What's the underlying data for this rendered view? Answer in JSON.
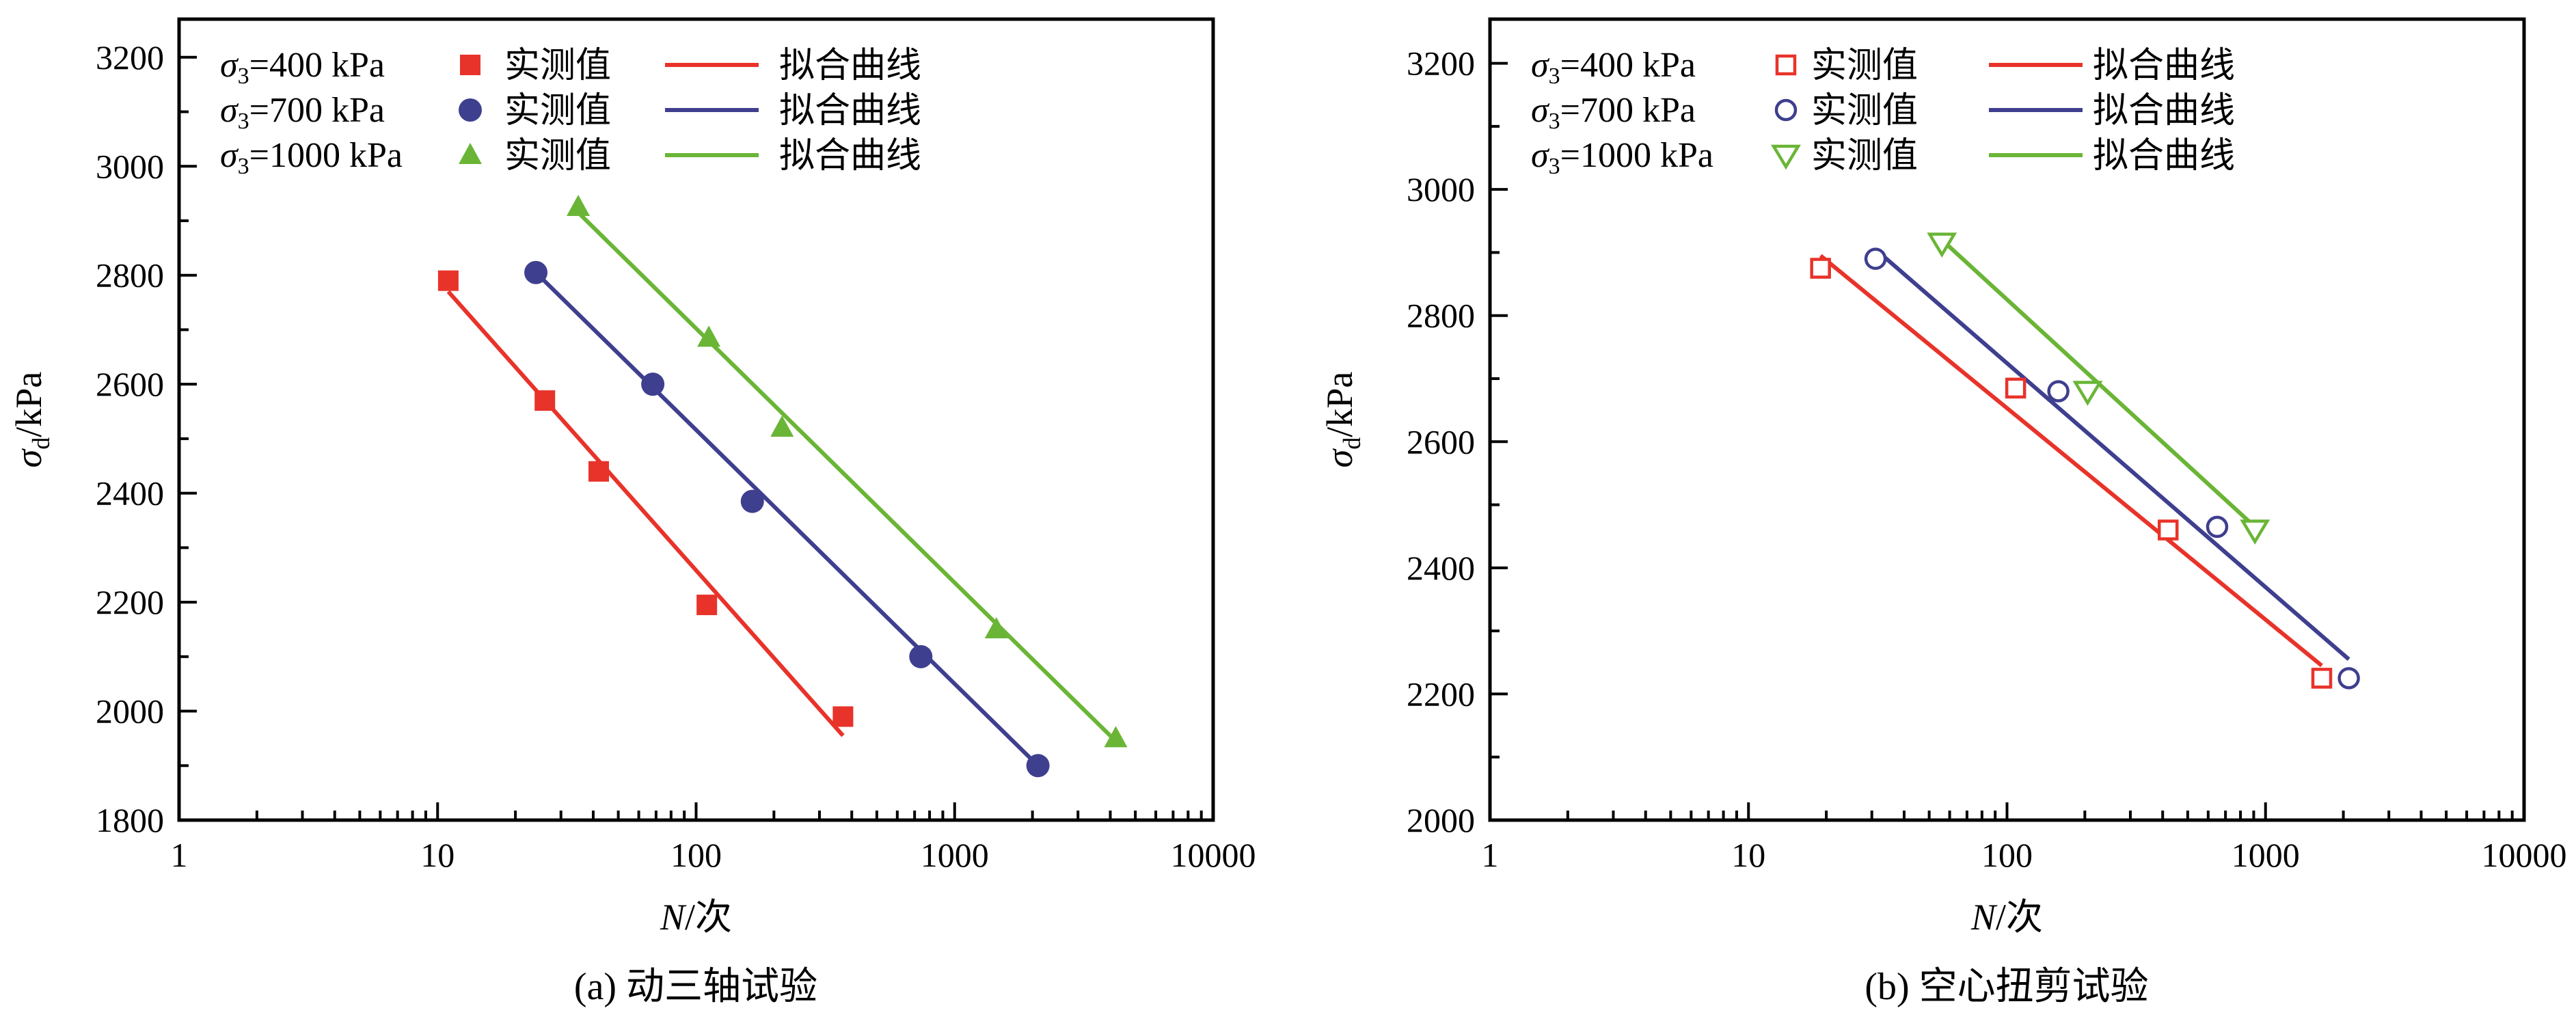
{
  "figure": {
    "panels": [
      {
        "caption": "(a) 动三轴试验",
        "y_axis_symbol": "σ",
        "y_axis_subscript": "d",
        "y_axis_unit": "/kPa",
        "x_axis_symbol": "N",
        "x_axis_unit": "/次",
        "x_ticks": [
          "1",
          "10",
          "100",
          "1000",
          "10000"
        ],
        "y_ticks": [
          "1800",
          "2000",
          "2200",
          "2400",
          "2600",
          "2800",
          "3000",
          "3200"
        ],
        "legend": [
          {
            "cond_symbol": "σ",
            "cond_sub": "3",
            "cond_text": "=400 kPa",
            "measured_label": "实测值",
            "fit_label": "拟合曲线"
          },
          {
            "cond_symbol": "σ",
            "cond_sub": "3",
            "cond_text": "=700 kPa",
            "measured_label": "实测值",
            "fit_label": "拟合曲线"
          },
          {
            "cond_symbol": "σ",
            "cond_sub": "3",
            "cond_text": "=1000 kPa",
            "measured_label": "实测值",
            "fit_label": "拟合曲线"
          }
        ]
      },
      {
        "caption": "(b) 空心扭剪试验",
        "y_axis_symbol": "σ",
        "y_axis_subscript": "d",
        "y_axis_unit": "/kPa",
        "x_axis_symbol": "N",
        "x_axis_unit": "/次",
        "x_ticks": [
          "1",
          "10",
          "100",
          "1000",
          "10000"
        ],
        "y_ticks": [
          "2000",
          "2200",
          "2400",
          "2600",
          "2800",
          "3000",
          "3200"
        ],
        "legend": [
          {
            "cond_symbol": "σ",
            "cond_sub": "3",
            "cond_text": "=400 kPa",
            "measured_label": "实测值",
            "fit_label": "拟合曲线"
          },
          {
            "cond_symbol": "σ",
            "cond_sub": "3",
            "cond_text": "=700 kPa",
            "measured_label": "实测值",
            "fit_label": "拟合曲线"
          },
          {
            "cond_symbol": "σ",
            "cond_sub": "3",
            "cond_text": "=1000 kPa",
            "measured_label": "实测值",
            "fit_label": "拟合曲线"
          }
        ]
      }
    ]
  },
  "chart_data": [
    {
      "type": "scatter",
      "x_scale": "log",
      "xlim": [
        1,
        10000
      ],
      "ylim": [
        1800,
        3270
      ],
      "y_tick_values": [
        1800,
        2000,
        2200,
        2400,
        2600,
        2800,
        3000,
        3200
      ],
      "grid": false,
      "legend_position": "top-left",
      "series": [
        {
          "condition": "σ3=400 kPa",
          "marker": "filled-square",
          "color": "#e8332a",
          "points": [
            [
              11,
              2790
            ],
            [
              26,
              2570
            ],
            [
              42,
              2440
            ],
            [
              110,
              2195
            ],
            [
              370,
              1990
            ]
          ],
          "fit": [
            [
              11,
              2770
            ],
            [
              370,
              1955
            ]
          ]
        },
        {
          "condition": "σ3=700 kPa",
          "marker": "filled-circle",
          "color": "#3f3f8f",
          "points": [
            [
              24,
              2805
            ],
            [
              68,
              2600
            ],
            [
              165,
              2385
            ],
            [
              740,
              2100
            ],
            [
              2100,
              1900
            ]
          ],
          "fit": [
            [
              24,
              2805
            ],
            [
              2100,
              1900
            ]
          ]
        },
        {
          "condition": "σ3=1000 kPa",
          "marker": "filled-triangle",
          "color": "#6ab536",
          "points": [
            [
              35,
              2925
            ],
            [
              112,
              2685
            ],
            [
              215,
              2520
            ],
            [
              1450,
              2150
            ],
            [
              4200,
              1950
            ]
          ],
          "fit": [
            [
              35,
              2915
            ],
            [
              4200,
              1945
            ]
          ]
        }
      ]
    },
    {
      "type": "scatter",
      "x_scale": "log",
      "xlim": [
        1,
        10000
      ],
      "ylim": [
        2000,
        3270
      ],
      "y_tick_values": [
        2000,
        2200,
        2400,
        2600,
        2800,
        3000,
        3200
      ],
      "grid": false,
      "legend_position": "top-left",
      "series": [
        {
          "condition": "σ3=400 kPa",
          "marker": "open-square",
          "color": "#e8332a",
          "points": [
            [
              19,
              2875
            ],
            [
              108,
              2685
            ],
            [
              420,
              2460
            ],
            [
              1650,
              2225
            ]
          ],
          "fit": [
            [
              19,
              2895
            ],
            [
              1650,
              2245
            ]
          ]
        },
        {
          "condition": "σ3=700 kPa",
          "marker": "open-circle",
          "color": "#3f3f8f",
          "points": [
            [
              31,
              2890
            ],
            [
              158,
              2680
            ],
            [
              650,
              2465
            ],
            [
              2100,
              2225
            ]
          ],
          "fit": [
            [
              31,
              2905
            ],
            [
              2100,
              2255
            ]
          ]
        },
        {
          "condition": "σ3=1000 kPa",
          "marker": "open-triangle-down",
          "color": "#6ab536",
          "points": [
            [
              56,
              2915
            ],
            [
              205,
              2680
            ],
            [
              910,
              2460
            ]
          ],
          "fit": [
            [
              56,
              2920
            ],
            [
              910,
              2465
            ]
          ]
        }
      ]
    }
  ]
}
